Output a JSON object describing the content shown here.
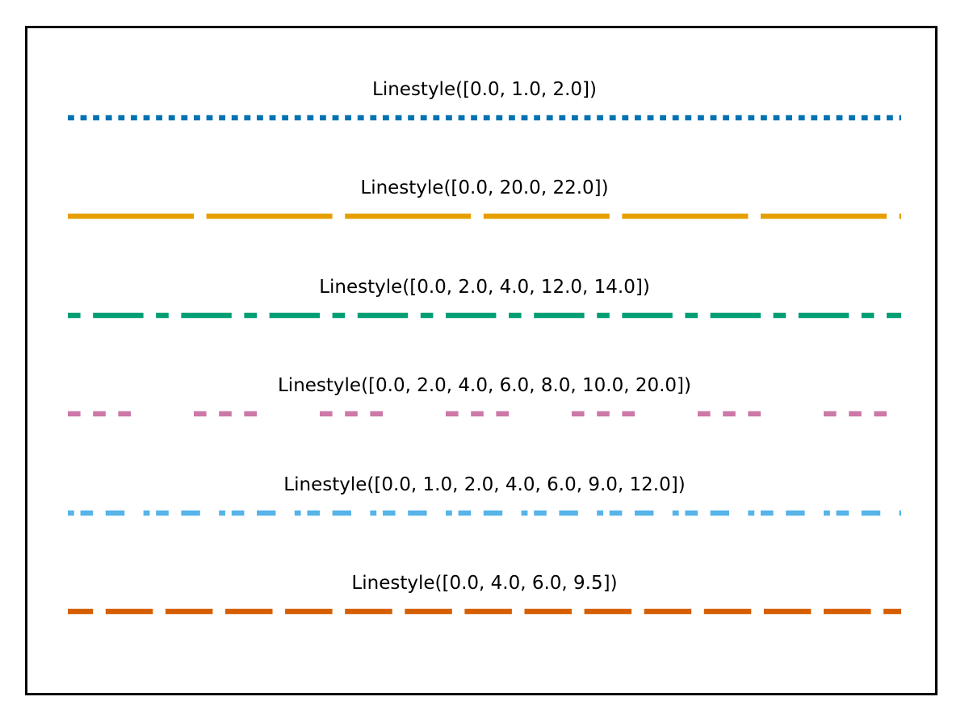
{
  "figure": {
    "background_color": "#ffffff",
    "border_color": "#000000"
  },
  "chart_data": {
    "type": "line",
    "title": "",
    "xlabel": "",
    "ylabel": "",
    "grid": false,
    "legend_position": "none",
    "axes_visible": false,
    "description_semantics": "dash pattern demo; each series is a horizontal line whose dash on/off breakpoints are given in the label",
    "series": [
      {
        "label": "Linestyle([0.0, 1.0, 2.0])",
        "color": "#0072B2",
        "dash_breakpoints": [
          0.0,
          1.0,
          2.0
        ]
      },
      {
        "label": "Linestyle([0.0, 20.0, 22.0])",
        "color": "#E69F00",
        "dash_breakpoints": [
          0.0,
          20.0,
          22.0
        ]
      },
      {
        "label": "Linestyle([0.0, 2.0, 4.0, 12.0, 14.0])",
        "color": "#009E73",
        "dash_breakpoints": [
          0.0,
          2.0,
          4.0,
          12.0,
          14.0
        ]
      },
      {
        "label": "Linestyle([0.0, 2.0, 4.0, 6.0, 8.0, 10.0, 20.0])",
        "color": "#CC79A7",
        "dash_breakpoints": [
          0.0,
          2.0,
          4.0,
          6.0,
          8.0,
          10.0,
          20.0
        ]
      },
      {
        "label": "Linestyle([0.0, 1.0, 2.0, 4.0, 6.0, 9.0, 12.0])",
        "color": "#56B4E9",
        "dash_breakpoints": [
          0.0,
          1.0,
          2.0,
          4.0,
          6.0,
          9.0,
          12.0
        ]
      },
      {
        "label": "Linestyle([0.0, 4.0, 6.0, 9.5])",
        "color": "#D55E00",
        "dash_breakpoints": [
          0.0,
          4.0,
          6.0,
          9.5
        ]
      }
    ]
  }
}
